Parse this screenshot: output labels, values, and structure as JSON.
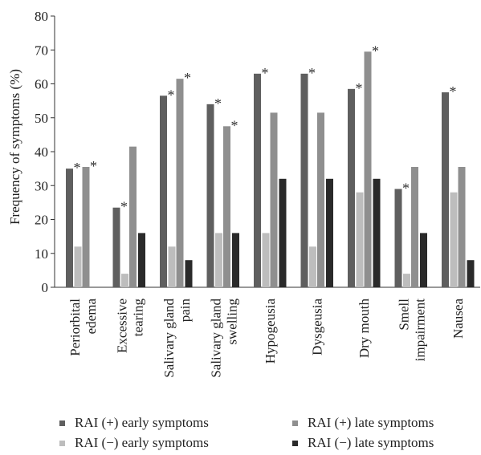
{
  "chart_data": {
    "type": "bar",
    "title": "",
    "xlabel": "",
    "ylabel": "Frequency of symptoms (%)",
    "ylim": [
      0,
      80
    ],
    "yticks": [
      0,
      10,
      20,
      30,
      40,
      50,
      60,
      70,
      80
    ],
    "categories": [
      [
        "Periorbital",
        "edema"
      ],
      [
        "Excessive",
        "tearing"
      ],
      [
        "Salivary gland",
        "pain"
      ],
      [
        "Salivary gland",
        "swelling"
      ],
      [
        "Hypogeusia"
      ],
      [
        "Dysgeusia"
      ],
      [
        "Dry mouth"
      ],
      [
        "Smell",
        "impairment"
      ],
      [
        "Nausea"
      ]
    ],
    "series": [
      {
        "name": "RAI (+) early symptoms",
        "color": "#5f5f5f",
        "values": [
          35,
          23.5,
          56.5,
          54,
          63,
          63,
          58.5,
          29,
          57.5
        ],
        "significant": [
          true,
          true,
          true,
          true,
          true,
          true,
          true,
          true,
          true
        ]
      },
      {
        "name": "RAI (−) early symptoms",
        "color": "#bdbdbd",
        "values": [
          12,
          4,
          12,
          16,
          16,
          12,
          28,
          4,
          28
        ],
        "significant": [
          false,
          false,
          false,
          false,
          false,
          false,
          false,
          false,
          false
        ]
      },
      {
        "name": "RAI (+) late symptoms",
        "color": "#8f8f8f",
        "values": [
          35.5,
          41.5,
          61.5,
          47.5,
          51.5,
          51.5,
          69.5,
          35.5,
          35.5
        ],
        "significant": [
          true,
          false,
          true,
          true,
          false,
          false,
          true,
          false,
          false
        ]
      },
      {
        "name": "RAI (−) late symptoms",
        "color": "#2a2a2a",
        "values": [
          0,
          16,
          8,
          16,
          32,
          32,
          32,
          16,
          8
        ],
        "significant": [
          false,
          false,
          false,
          false,
          false,
          false,
          false,
          false,
          false
        ]
      }
    ],
    "significance_marker": "*",
    "grid": false,
    "legend_position": "bottom"
  }
}
